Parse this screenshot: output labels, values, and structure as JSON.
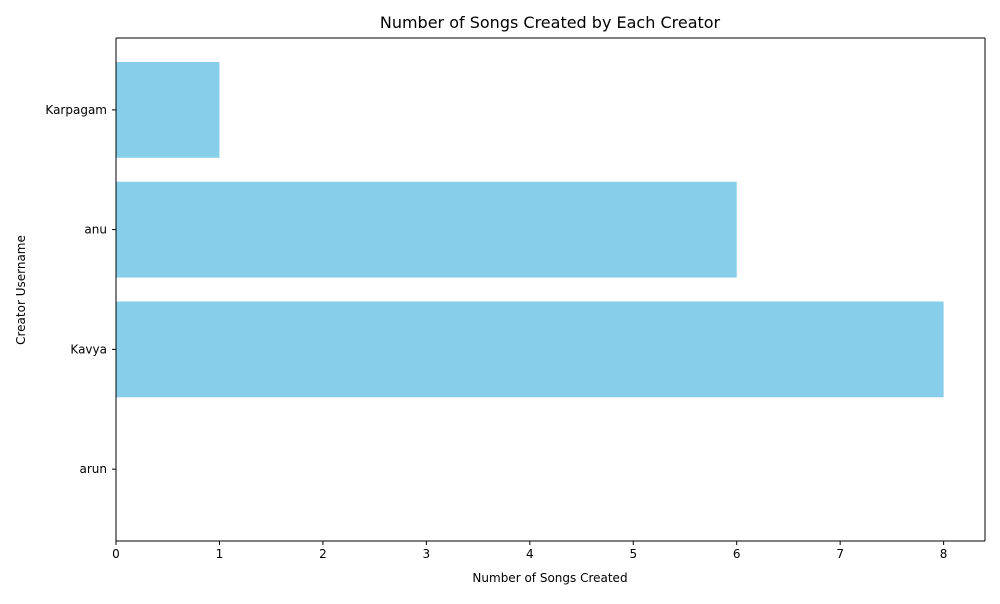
{
  "chart_data": {
    "type": "bar",
    "orientation": "horizontal",
    "title": "Number of Songs Created by Each Creator",
    "xlabel": "Number of Songs Created",
    "ylabel": "Creator Username",
    "categories": [
      "arun",
      "Kavya",
      "anu",
      "Karpagam"
    ],
    "values": [
      0,
      8,
      6,
      1
    ],
    "xlim": [
      0,
      8.4
    ],
    "xticks": [
      0,
      1,
      2,
      3,
      4,
      5,
      6,
      7,
      8
    ],
    "bar_color": "#87CEEB",
    "grid": false
  }
}
